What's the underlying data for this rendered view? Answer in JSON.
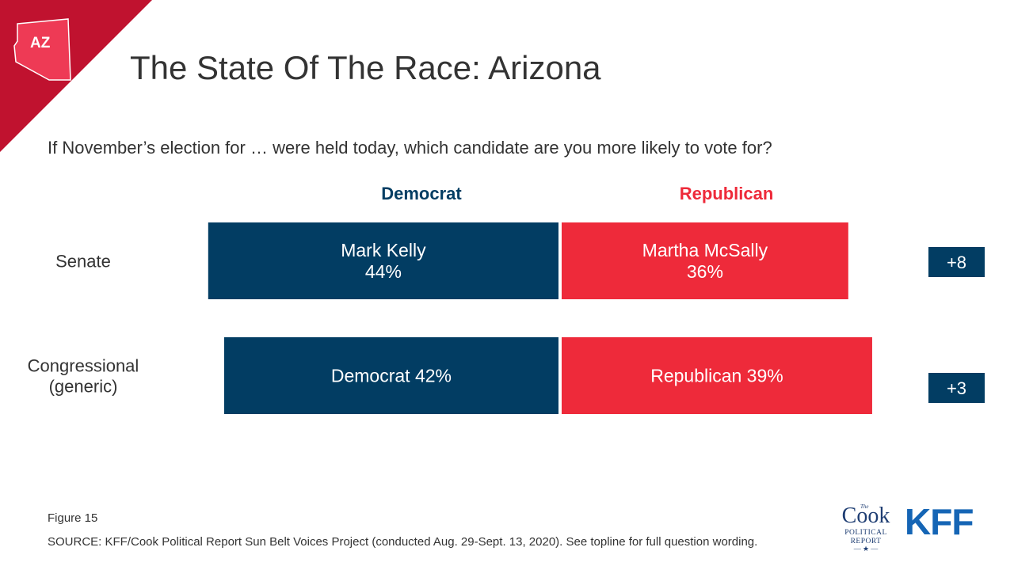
{
  "header": {
    "state_code": "AZ",
    "title": "The State Of The Race: Arizona"
  },
  "question": "If November’s election for … were held today, which candidate are you more likely to vote for?",
  "colors": {
    "democrat": "#023d63",
    "republican": "#ee2a3a",
    "corner": "#c0122f",
    "state_shape": "#ee3a55",
    "margin_box": "#023d63"
  },
  "chart_data": {
    "type": "bar",
    "orientation": "horizontal",
    "stacked": true,
    "columns": [
      "Democrat",
      "Republican"
    ],
    "categories": [
      "Senate",
      "Congressional (generic)"
    ],
    "category_lines": [
      [
        "Senate"
      ],
      [
        "Congressional",
        "(generic)"
      ]
    ],
    "series": [
      {
        "name": "Democrat",
        "values": [
          44,
          42
        ],
        "labels": [
          [
            "Mark Kelly",
            "44%"
          ],
          [
            "Democrat 42%"
          ]
        ]
      },
      {
        "name": "Republican",
        "values": [
          36,
          39
        ],
        "labels": [
          [
            "Martha McSally",
            "36%"
          ],
          [
            "Republican 39%"
          ]
        ]
      }
    ],
    "unit": "%",
    "margins": [
      "+8",
      "+3"
    ]
  },
  "footer": {
    "figure": "Figure 15",
    "source": "SOURCE: KFF/Cook Political Report Sun Belt Voices Project (conducted Aug. 29-Sept. 13, 2020). See topline for full question wording."
  },
  "logos": {
    "cook_the": "The",
    "cook_word": "Cook",
    "cook_political": "POLITICAL",
    "cook_report": "REPORT",
    "cook_star": "— ★ —",
    "kff": "KFF"
  }
}
